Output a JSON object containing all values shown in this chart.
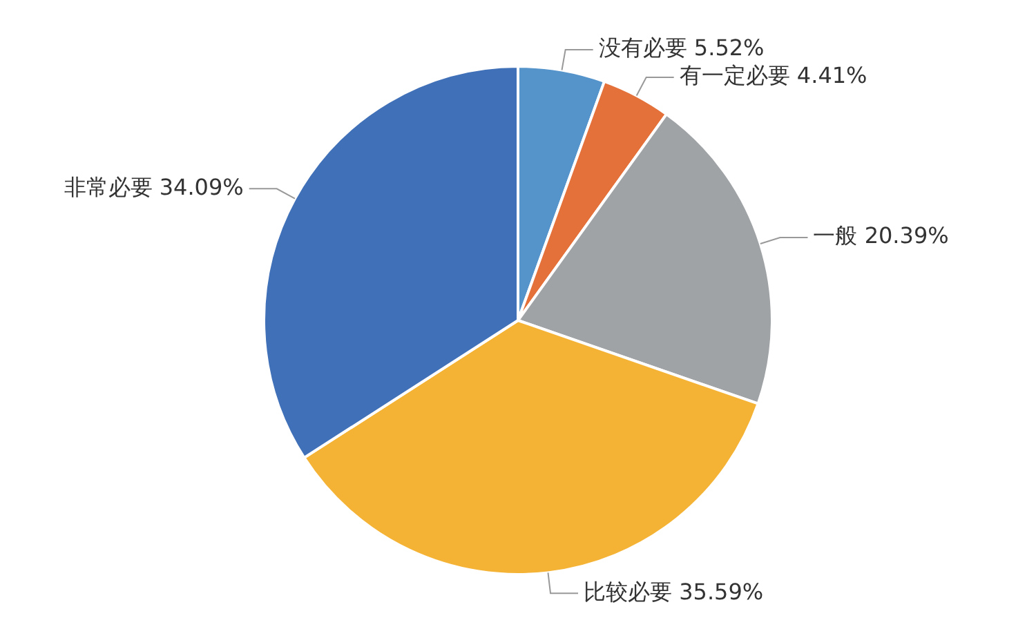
{
  "chart_data": {
    "type": "pie",
    "categories": [
      "没有必要",
      "有一定必要",
      "一般",
      "比较必要",
      "非常必要"
    ],
    "values": [
      5.52,
      4.41,
      20.39,
      35.59,
      34.09
    ],
    "value_labels": [
      "5.52%",
      "4.41%",
      "20.39%",
      "35.59%",
      "34.09%"
    ],
    "colors": [
      "#5593cb",
      "#e4703a",
      "#a0a3a6",
      "#f5b335",
      "#4070b8"
    ],
    "legend": false
  }
}
